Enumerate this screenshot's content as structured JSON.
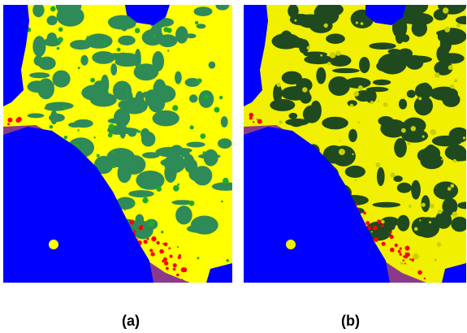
{
  "panels": [
    {
      "id": "a",
      "caption": "(a)",
      "palette": {
        "water": "#0000ff",
        "vegetation": "#2e8b57",
        "open_land": "#ffff00",
        "urban": "#ff0000",
        "shallow_water": "#8b3a8b",
        "grass": "#22aa22"
      }
    },
    {
      "id": "b",
      "caption": "(b)",
      "palette": {
        "water": "#0000ff",
        "vegetation": "#1f4a1f",
        "open_land": "#f0f000",
        "urban": "#ff0000",
        "shallow_water": "#8b3a8b",
        "grass": "#c8d000"
      }
    }
  ]
}
